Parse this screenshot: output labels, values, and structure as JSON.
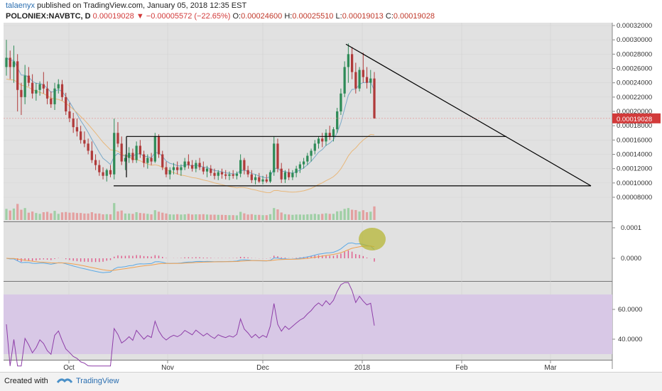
{
  "header": {
    "author": "talaenyx",
    "published": "published on TradingView.com, January 05, 2018 12:35 EST",
    "symbol": "POLONIEX:NAVBTC, D",
    "last": "0.00019028",
    "change": "−0.00005572 (−22.65%)",
    "o_label": "O:",
    "o_value": "0.00024600",
    "h_label": "H:",
    "h_value": "0.00025510",
    "l_label": "L:",
    "l_value": "0.00019013",
    "c_label": "C:",
    "c_value": "0.00019028"
  },
  "footer": {
    "created_with": "Created with",
    "brand": "TradingView"
  },
  "colors": {
    "up": "#2e8b57",
    "down": "#b03a3a",
    "price_tag": "#d23a3a",
    "ema_fast": "#5aa9e6",
    "ema_slow": "#f0a050",
    "rsi_band": "#d8c8e6",
    "rsi_line": "#8e3ea8",
    "highlight": "#b5b534"
  },
  "chart_data": {
    "type": "candlestick",
    "x_ticks": [
      "Oct",
      "Nov",
      "Dec",
      "2018",
      "Feb",
      "Mar"
    ],
    "price_axis": [
      "0.00032000",
      "0.00030000",
      "0.00028000",
      "0.00026000",
      "0.00024000",
      "0.00022000",
      "0.00020000",
      "0.00018000",
      "0.00016000",
      "0.00014000",
      "0.00012000",
      "0.00010000",
      "0.00008000"
    ],
    "current_price_tag": "0.00019028",
    "macd_axis": [
      "0.0001",
      "0.0000"
    ],
    "rsi_axis": [
      "60.0000",
      "40.0000"
    ],
    "ohlc": [
      [
        0.000262,
        0.0003,
        0.00025,
        0.000275
      ],
      [
        0.000275,
        0.000285,
        0.000245,
        0.000262
      ],
      [
        0.000262,
        0.000292,
        0.00024,
        0.00027
      ],
      [
        0.00027,
        0.00028,
        0.0002,
        0.00023
      ],
      [
        0.00023,
        0.00024,
        0.000195,
        0.00022
      ],
      [
        0.00022,
        0.000265,
        0.00021,
        0.00025
      ],
      [
        0.00025,
        0.000262,
        0.000235,
        0.00024
      ],
      [
        0.00024,
        0.000252,
        0.000218,
        0.000225
      ],
      [
        0.000225,
        0.00024,
        0.000215,
        0.00023
      ],
      [
        0.00023,
        0.000242,
        0.000222,
        0.000238
      ],
      [
        0.000238,
        0.000255,
        0.000225,
        0.000232
      ],
      [
        0.000232,
        0.000242,
        0.00021,
        0.000218
      ],
      [
        0.000218,
        0.000228,
        0.000205,
        0.00021
      ],
      [
        0.00021,
        0.00024,
        0.000202,
        0.000232
      ],
      [
        0.000232,
        0.000245,
        0.000225,
        0.000238
      ],
      [
        0.000238,
        0.000244,
        0.000215,
        0.00022
      ],
      [
        0.00022,
        0.000226,
        0.000195,
        0.0002
      ],
      [
        0.0002,
        0.000212,
        0.000185,
        0.00019
      ],
      [
        0.00019,
        0.000198,
        0.00017,
        0.000178
      ],
      [
        0.000178,
        0.00019,
        0.000165,
        0.000172
      ],
      [
        0.000172,
        0.00018,
        0.000155,
        0.00016
      ],
      [
        0.00016,
        0.000172,
        0.00015,
        0.000155
      ],
      [
        0.000155,
        0.000162,
        0.00014,
        0.000145
      ],
      [
        0.000145,
        0.000158,
        0.000128,
        0.000132
      ],
      [
        0.000132,
        0.00014,
        0.000118,
        0.000125
      ],
      [
        0.000125,
        0.000132,
        0.00011,
        0.000115
      ],
      [
        0.000115,
        0.000122,
        0.000105,
        0.00011
      ],
      [
        0.00011,
        0.00012,
        0.000102,
        0.000118
      ],
      [
        0.000118,
        0.000125,
        0.000108,
        0.000112
      ],
      [
        0.000112,
        0.00019,
        0.000105,
        0.00017
      ],
      [
        0.00017,
        0.000185,
        0.00015,
        0.000155
      ],
      [
        0.000155,
        0.000165,
        0.000125,
        0.00013
      ],
      [
        0.00013,
        0.00014,
        0.000118,
        0.000135
      ],
      [
        0.000135,
        0.00015,
        0.000128,
        0.000142
      ],
      [
        0.000142,
        0.000148,
        0.000128,
        0.000132
      ],
      [
        0.000132,
        0.000158,
        0.000128,
        0.000152
      ],
      [
        0.000152,
        0.00016,
        0.000135,
        0.00014
      ],
      [
        0.00014,
        0.000145,
        0.000122,
        0.000128
      ],
      [
        0.000128,
        0.00014,
        0.00012,
        0.000135
      ],
      [
        0.000135,
        0.000142,
        0.000125,
        0.00013
      ],
      [
        0.00013,
        0.00017,
        0.000128,
        0.000165
      ],
      [
        0.000165,
        0.000168,
        0.000135,
        0.00014
      ],
      [
        0.00014,
        0.000145,
        0.000118,
        0.000122
      ],
      [
        0.000122,
        0.00013,
        0.000108,
        0.000112
      ],
      [
        0.000112,
        0.000122,
        0.000105,
        0.000118
      ],
      [
        0.000118,
        0.000128,
        0.000112,
        0.000122
      ],
      [
        0.000122,
        0.00013,
        0.000112,
        0.000118
      ],
      [
        0.000118,
        0.000126,
        0.00011,
        0.000122
      ],
      [
        0.000122,
        0.000135,
        0.000118,
        0.00013
      ],
      [
        0.00013,
        0.00014,
        0.00012,
        0.000125
      ],
      [
        0.000125,
        0.000132,
        0.000116,
        0.00012
      ],
      [
        0.00012,
        0.000132,
        0.000115,
        0.000128
      ],
      [
        0.000128,
        0.000135,
        0.000118,
        0.000122
      ],
      [
        0.000122,
        0.00013,
        0.000112,
        0.000116
      ],
      [
        0.000116,
        0.000124,
        0.000108,
        0.00012
      ],
      [
        0.00012,
        0.000125,
        0.00011,
        0.000114
      ],
      [
        0.000114,
        0.00012,
        0.000105,
        0.00011
      ],
      [
        0.00011,
        0.000118,
        0.000104,
        0.000115
      ],
      [
        0.000115,
        0.00012,
        0.000106,
        0.000112
      ],
      [
        0.000112,
        0.000118,
        0.000105,
        0.00011
      ],
      [
        0.00011,
        0.000116,
        0.000104,
        0.000112
      ],
      [
        0.000112,
        0.000118,
        0.000106,
        0.00011
      ],
      [
        0.00011,
        0.000116,
        0.000105,
        0.000113
      ],
      [
        0.000113,
        0.00014,
        0.000108,
        0.000132
      ],
      [
        0.000132,
        0.000135,
        0.000112,
        0.000118
      ],
      [
        0.000118,
        0.000124,
        0.000108,
        0.000112
      ],
      [
        0.000112,
        0.000118,
        0.0001,
        0.000104
      ],
      [
        0.000104,
        0.000112,
        9.8e-05,
        0.000108
      ],
      [
        0.000108,
        0.000114,
        0.0001,
        0.000102
      ],
      [
        0.000102,
        0.00011,
        9.8e-05,
        0.000105
      ],
      [
        0.000105,
        0.000112,
        0.0001,
        0.000102
      ],
      [
        0.000102,
        0.000118,
        0.0001,
        0.000115
      ],
      [
        0.000115,
        0.000165,
        0.00011,
        0.000155
      ],
      [
        0.000155,
        0.000162,
        0.000115,
        0.00012
      ],
      [
        0.00012,
        0.000128,
        0.0001,
        0.000105
      ],
      [
        0.000105,
        0.000118,
        0.0001,
        0.000115
      ],
      [
        0.000115,
        0.00012,
        0.000104,
        0.000108
      ],
      [
        0.000108,
        0.000118,
        0.000104,
        0.000114
      ],
      [
        0.000114,
        0.000124,
        0.000108,
        0.00012
      ],
      [
        0.00012,
        0.00013,
        0.000114,
        0.000126
      ],
      [
        0.000126,
        0.000135,
        0.00012,
        0.00013
      ],
      [
        0.00013,
        0.000142,
        0.000125,
        0.000138
      ],
      [
        0.000138,
        0.000148,
        0.00013,
        0.000145
      ],
      [
        0.000145,
        0.00016,
        0.00014,
        0.000155
      ],
      [
        0.000155,
        0.000165,
        0.000148,
        0.000162
      ],
      [
        0.000162,
        0.00017,
        0.00015,
        0.000158
      ],
      [
        0.000158,
        0.000175,
        0.000152,
        0.00017
      ],
      [
        0.00017,
        0.00018,
        0.00016,
        0.000165
      ],
      [
        0.000165,
        0.000178,
        0.000158,
        0.000175
      ],
      [
        0.000175,
        0.000205,
        0.00017,
        0.0002
      ],
      [
        0.0002,
        0.000232,
        0.000195,
        0.000225
      ],
      [
        0.000225,
        0.00027,
        0.00022,
        0.000262
      ],
      [
        0.000262,
        0.000295,
        0.00024,
        0.00028
      ],
      [
        0.00028,
        0.00029,
        0.000245,
        0.000255
      ],
      [
        0.000255,
        0.000268,
        0.000225,
        0.000232
      ],
      [
        0.000232,
        0.000262,
        0.000228,
        0.000258
      ],
      [
        0.000258,
        0.000282,
        0.00024,
        0.000248
      ],
      [
        0.000248,
        0.000262,
        0.000232,
        0.00024
      ],
      [
        0.00024,
        0.000258,
        0.000225,
        0.000246
      ],
      [
        0.000246,
        0.000255,
        0.00019,
        0.00019
      ]
    ],
    "horizontal_levels": [
      0.000165,
      9.6e-05
    ],
    "trendline": {
      "from": 0.000294,
      "to": 9.6e-05
    }
  }
}
